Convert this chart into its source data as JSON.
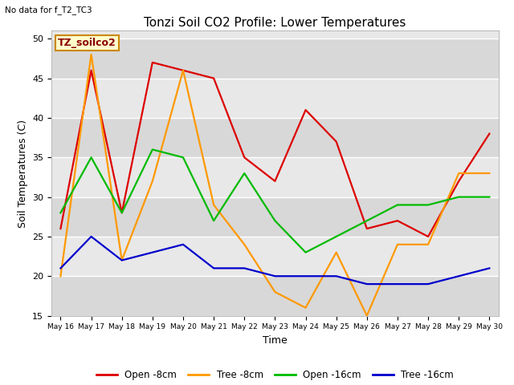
{
  "title": "Tonzi Soil CO2 Profile: Lower Temperatures",
  "xlabel": "Time",
  "ylabel": "Soil Temperatures (C)",
  "top_left_text": "No data for f_T2_TC3",
  "annotation_box": "TZ_soilco2",
  "ylim": [
    15,
    51
  ],
  "yticks": [
    15,
    20,
    25,
    30,
    35,
    40,
    45,
    50
  ],
  "x_labels": [
    "May 16",
    "May 17",
    "May 18",
    "May 19",
    "May 20",
    "May 21",
    "May 22",
    "May 23",
    "May 24",
    "May 25",
    "May 26",
    "May 27",
    "May 28",
    "May 29",
    "May 30"
  ],
  "open_8cm_y": [
    26,
    46,
    28,
    47,
    46,
    45,
    35,
    32,
    41,
    37,
    26,
    27,
    25,
    32,
    38
  ],
  "tree_8cm_y": [
    20,
    48,
    22,
    32,
    46,
    29,
    24,
    18,
    16,
    23,
    15,
    24,
    24,
    33,
    33
  ],
  "open_16cm_y": [
    28,
    35,
    28,
    36,
    35,
    27,
    33,
    27,
    23,
    25,
    27,
    29,
    29,
    30,
    30
  ],
  "tree_16cm_y": [
    21,
    25,
    22,
    23,
    24,
    21,
    21,
    20,
    20,
    20,
    19,
    19,
    19,
    20,
    21
  ],
  "colors": {
    "open_8cm": "#dd0000",
    "tree_8cm": "#ff9900",
    "open_16cm": "#00bb00",
    "tree_16cm": "#0000cc"
  },
  "legend_labels": [
    "Open -8cm",
    "Tree -8cm",
    "Open -16cm",
    "Tree -16cm"
  ],
  "band_edges": [
    15,
    20,
    25,
    30,
    35,
    40,
    45,
    50,
    55
  ],
  "band_colors_alt": [
    "#e0e0e0",
    "#ebebeb"
  ]
}
